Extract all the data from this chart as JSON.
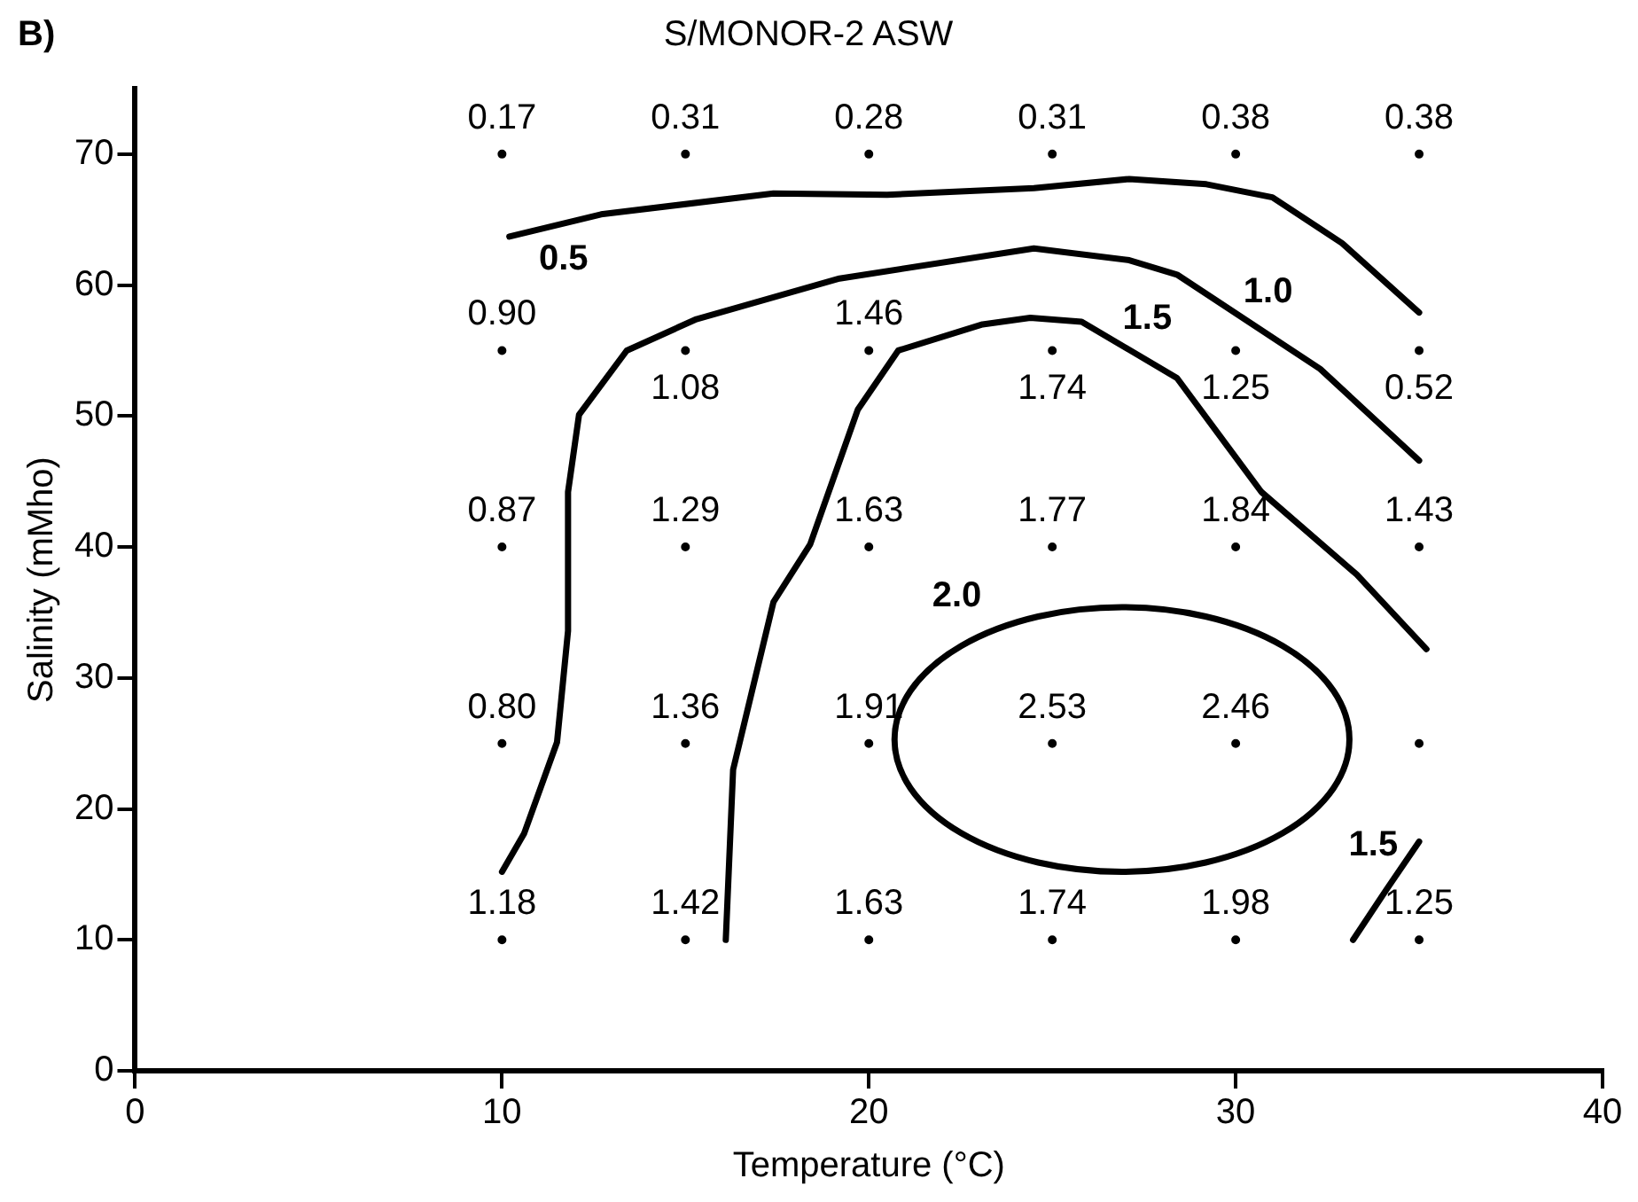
{
  "chart_data": {
    "type": "scatter",
    "title": "S/MONOR-2 ASW",
    "xlabel": "Temperature (°C)",
    "ylabel": "Salinity (mMho)",
    "xlim": [
      0,
      40
    ],
    "xticks": [
      0,
      10,
      20,
      30,
      40
    ],
    "ylim": [
      0,
      75
    ],
    "yticks": [
      0,
      10,
      20,
      30,
      40,
      50,
      60,
      70
    ],
    "grid": false,
    "legend": false,
    "marker": "circle",
    "annotations": [
      "B)",
      "2.0",
      {
        "text": "0.17",
        "x": 10,
        "y": 70
      },
      {
        "text": "0.31",
        "x": 15,
        "y": 70
      },
      {
        "text": "0.28",
        "x": 20,
        "y": 70
      },
      {
        "text": "0.31",
        "x": 25,
        "y": 70
      },
      {
        "text": "0.38",
        "x": 30,
        "y": 70
      },
      {
        "text": "0.38",
        "x": 35,
        "y": 70
      },
      {
        "text": "0.90",
        "x": 10,
        "y": 55
      },
      {
        "text": "1.08",
        "x": 15,
        "y": 55
      },
      {
        "text": "1.46",
        "x": 20,
        "y": 55
      },
      {
        "text": "1.74",
        "x": 25,
        "y": 55
      },
      {
        "text": "1.25",
        "x": 30,
        "y": 55
      },
      {
        "text": "0.52",
        "x": 35,
        "y": 55
      },
      {
        "text": "0.87",
        "x": 10,
        "y": 40
      },
      {
        "text": "1.29",
        "x": 15,
        "y": 40
      },
      {
        "text": "1.63",
        "x": 20,
        "y": 40
      },
      {
        "text": "1.77",
        "x": 25,
        "y": 40
      },
      {
        "text": "1.84",
        "x": 30,
        "y": 40
      },
      {
        "text": "1.43",
        "x": 35,
        "y": 40
      },
      {
        "text": "0.80",
        "x": 10,
        "y": 25
      },
      {
        "text": "1.36",
        "x": 15,
        "y": 25
      },
      {
        "text": "1.91",
        "x": 20,
        "y": 25
      },
      {
        "text": "2.53",
        "x": 25,
        "y": 25
      },
      {
        "text": "2.46",
        "x": 30,
        "y": 25
      },
      {
        "text": "1.18",
        "x": 10,
        "y": 10
      },
      {
        "text": "1.42",
        "x": 15,
        "y": 10
      },
      {
        "text": "1.63",
        "x": 20,
        "y": 10
      },
      {
        "text": "1.74",
        "x": 25,
        "y": 10
      },
      {
        "text": "1.98",
        "x": 30,
        "y": 10
      },
      {
        "text": "1.25",
        "x": 35,
        "y": 10
      }
    ],
    "series": [
      {
        "color": "#000000",
        "x": [
          10,
          15,
          20,
          25,
          30,
          35,
          10,
          15,
          20,
          25,
          30,
          35,
          10,
          15,
          20,
          25,
          30,
          35,
          10,
          15,
          20,
          25,
          30,
          35,
          10,
          15,
          20,
          25,
          30,
          35
        ],
        "values": [
          70,
          70,
          70,
          70,
          70,
          70,
          55,
          55,
          55,
          55,
          55,
          55,
          40,
          40,
          40,
          40,
          40,
          40,
          25,
          25,
          25,
          25,
          25,
          25,
          10,
          10,
          10,
          10,
          10,
          10
        ]
      },
      {
        "type": "line",
        "name": "0.5",
        "color": "#000000",
        "marker": "none",
        "x": [
          10.2,
          12.7,
          17.4,
          20.5,
          24.5,
          27.1,
          29.2,
          31.0,
          32.9,
          35.0
        ],
        "values": [
          63.7,
          65.4,
          67.0,
          66.9,
          67.4,
          68.1,
          67.7,
          66.7,
          63.2,
          57.9
        ]
      },
      {
        "type": "line",
        "name": "1.0",
        "color": "#000000",
        "marker": "none",
        "x": [
          10,
          10.6,
          11.5,
          11.8,
          11.8,
          12.1,
          13.4,
          15.3,
          19.2,
          24.5,
          27.1,
          28.4,
          32.3,
          35.0
        ],
        "values": [
          15.2,
          18.1,
          25.1,
          33.6,
          44.2,
          50.1,
          55,
          57.4,
          60.5,
          62.8,
          61.9,
          60.8,
          53.6,
          46.6
        ]
      },
      {
        "type": "line",
        "name": "1.5",
        "color": "#000000",
        "marker": "none",
        "x": [
          16.1,
          16.3,
          17.4,
          18.4,
          19.7,
          20.8,
          23.1,
          24.4,
          25.8,
          28.4,
          30.7,
          33.3,
          35.2
        ],
        "values": [
          10,
          23,
          35.8,
          40.2,
          50.5,
          55,
          57,
          57.5,
          57.2,
          52.9,
          44.2,
          37.9,
          32.2
        ]
      },
      {
        "type": "line",
        "name": "1.5",
        "color": "#000000",
        "marker": "none",
        "x": [
          33.2,
          34.1,
          35.0
        ],
        "values": [
          10,
          13.8,
          17.5
        ]
      }
    ]
  }
}
